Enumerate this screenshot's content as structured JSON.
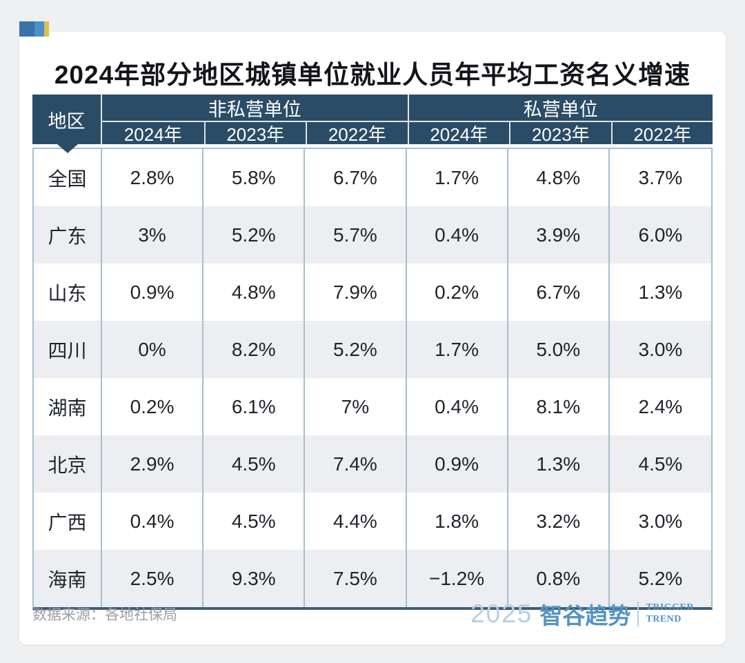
{
  "header": {
    "title": "2024年部分地区城镇单位就业人员年平均工资名义增速"
  },
  "table": {
    "region_header": "地区",
    "groups": [
      {
        "label": "非私营单位",
        "years": [
          "2024年",
          "2023年",
          "2022年"
        ]
      },
      {
        "label": "私营单位",
        "years": [
          "2024年",
          "2023年",
          "2022年"
        ]
      }
    ],
    "rows": [
      {
        "region": "全国",
        "values": [
          "2.8%",
          "5.8%",
          "6.7%",
          "1.7%",
          "4.8%",
          "3.7%"
        ]
      },
      {
        "region": "广东",
        "values": [
          "3%",
          "5.2%",
          "5.7%",
          "0.4%",
          "3.9%",
          "6.0%"
        ]
      },
      {
        "region": "山东",
        "values": [
          "0.9%",
          "4.8%",
          "7.9%",
          "0.2%",
          "6.7%",
          "1.3%"
        ]
      },
      {
        "region": "四川",
        "values": [
          "0%",
          "8.2%",
          "5.2%",
          "1.7%",
          "5.0%",
          "3.0%"
        ]
      },
      {
        "region": "湖南",
        "values": [
          "0.2%",
          "6.1%",
          "7%",
          "0.4%",
          "8.1%",
          "2.4%"
        ]
      },
      {
        "region": "北京",
        "values": [
          "2.9%",
          "4.5%",
          "7.4%",
          "0.9%",
          "1.3%",
          "4.5%"
        ]
      },
      {
        "region": "广西",
        "values": [
          "0.4%",
          "4.5%",
          "4.4%",
          "1.8%",
          "3.2%",
          "3.0%"
        ]
      },
      {
        "region": "海南",
        "values": [
          "2.5%",
          "9.3%",
          "7.5%",
          "−1.2%",
          "0.8%",
          "5.2%"
        ]
      }
    ]
  },
  "footer": {
    "source": "数据来源：各地社保局",
    "brand": {
      "year": "2025",
      "name": "智谷趋势",
      "tagline1": "TRIGGER",
      "tagline2": "TREND"
    }
  },
  "colors": {
    "page_bg": "#eef0f2",
    "header_bg": "#2b4c66",
    "alt_row_bg": "#eceef1",
    "grid_line": "#a9bdcc",
    "table_bottom_border": "#3f5d75",
    "title_text": "#121417",
    "body_text": "#1f2329",
    "source_text": "#9aa0a6",
    "brand_blue": "#5493c4",
    "brand_light_blue": "#b5cfe4",
    "logo_dark_blue": "#3a72aa",
    "logo_blue": "#4b90c6",
    "logo_yellow": "#e2bd4f"
  },
  "chart_data": {
    "type": "table",
    "title": "2024年部分地区城镇单位就业人员年平均工资名义增速",
    "column_groups": [
      "非私营单位",
      "私营单位"
    ],
    "columns": [
      "地区",
      "非私营单位 2024年",
      "非私营单位 2023年",
      "非私营单位 2022年",
      "私营单位 2024年",
      "私营单位 2023年",
      "私营单位 2022年"
    ],
    "rows": [
      [
        "全国",
        "2.8%",
        "5.8%",
        "6.7%",
        "1.7%",
        "4.8%",
        "3.7%"
      ],
      [
        "广东",
        "3%",
        "5.2%",
        "5.7%",
        "0.4%",
        "3.9%",
        "6.0%"
      ],
      [
        "山东",
        "0.9%",
        "4.8%",
        "7.9%",
        "0.2%",
        "6.7%",
        "1.3%"
      ],
      [
        "四川",
        "0%",
        "8.2%",
        "5.2%",
        "1.7%",
        "5.0%",
        "3.0%"
      ],
      [
        "湖南",
        "0.2%",
        "6.1%",
        "7%",
        "0.4%",
        "8.1%",
        "2.4%"
      ],
      [
        "北京",
        "2.9%",
        "4.5%",
        "7.4%",
        "0.9%",
        "1.3%",
        "4.5%"
      ],
      [
        "广西",
        "0.4%",
        "4.5%",
        "4.4%",
        "1.8%",
        "3.2%",
        "3.0%"
      ],
      [
        "海南",
        "2.5%",
        "9.3%",
        "7.5%",
        "−1.2%",
        "0.8%",
        "5.2%"
      ]
    ],
    "source": "数据来源：各地社保局"
  }
}
